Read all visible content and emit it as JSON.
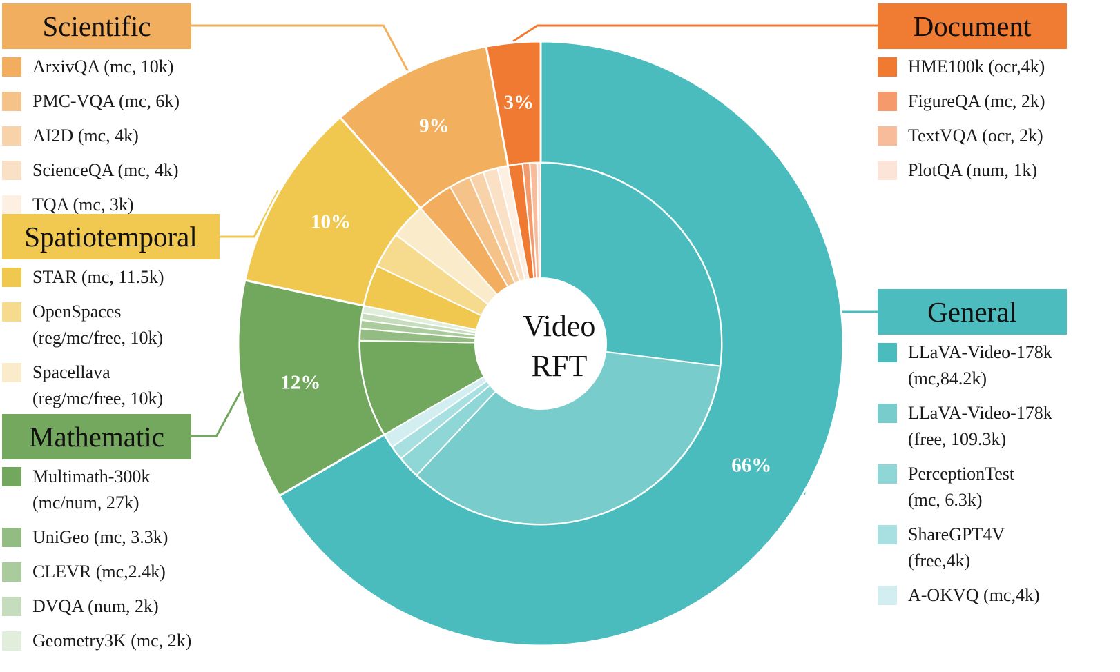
{
  "chart_data": {
    "type": "pie",
    "center_label": [
      "Video",
      "RFT"
    ],
    "categories": [
      {
        "name": "General",
        "percent_label": "66%",
        "color": "#4bbcbe",
        "items": [
          {
            "label": "LLaVA-Video-178k\n(mc,84.2k)",
            "value": 84.2,
            "color": "#4bbcbe"
          },
          {
            "label": "LLaVA-Video-178k\n(free, 109.3k)",
            "value": 109.3,
            "color": "#78cdcc"
          },
          {
            "label": "PerceptionTest\n(mc, 6.3k)",
            "value": 6.3,
            "color": "#8fd6d6"
          },
          {
            "label": "ShareGPT4V\n(free,4k)",
            "value": 4,
            "color": "#a8dfe1"
          },
          {
            "label": "A-OKVQ (mc,4k)",
            "value": 4,
            "color": "#d2eef0"
          }
        ]
      },
      {
        "name": "Mathematic",
        "percent_label": "12%",
        "color": "#72a85e",
        "items": [
          {
            "label": "Multimath-300k\n(mc/num, 27k)",
            "value": 27,
            "color": "#72a85e"
          },
          {
            "label": "UniGeo (mc, 3.3k)",
            "value": 3.3,
            "color": "#92bc81"
          },
          {
            "label": "CLEVR (mc,2.4k)",
            "value": 2.4,
            "color": "#aacb9c"
          },
          {
            "label": "DVQA (num, 2k)",
            "value": 2,
            "color": "#c5ddbc"
          },
          {
            "label": "Geometry3K (mc, 2k)",
            "value": 2,
            "color": "#e2eedc"
          }
        ]
      },
      {
        "name": "Spatiotemporal",
        "percent_label": "10%",
        "color": "#f0c850",
        "items": [
          {
            "label": "STAR (mc, 11.5k)",
            "value": 11.5,
            "color": "#f0c850"
          },
          {
            "label": "OpenSpaces\n(reg/mc/free, 10k)",
            "value": 10,
            "color": "#f6da8d"
          },
          {
            "label": "Spacellava\n(reg/mc/free, 10k)",
            "value": 10,
            "color": "#faeccb"
          }
        ]
      },
      {
        "name": "Scientific",
        "percent_label": "9%",
        "color": "#f2b05e",
        "items": [
          {
            "label": "ArxivQA (mc, 10k)",
            "value": 10,
            "color": "#f2ad5e"
          },
          {
            "label": "PMC-VQA (mc, 6k)",
            "value": 6,
            "color": "#f5c28a"
          },
          {
            "label": "AI2D (mc, 4k)",
            "value": 4,
            "color": "#f8d2a8"
          },
          {
            "label": "ScienceQA (mc, 4k)",
            "value": 4,
            "color": "#fae1c6"
          },
          {
            "label": "TQA (mc, 3k)",
            "value": 3,
            "color": "#fdf0e2"
          }
        ]
      },
      {
        "name": "Document",
        "percent_label": "3%",
        "color": "#f07a32",
        "items": [
          {
            "label": "HME100k (ocr,4k)",
            "value": 4,
            "color": "#f07a32"
          },
          {
            "label": "FigureQA (mc, 2k)",
            "value": 2,
            "color": "#f59a6a"
          },
          {
            "label": "TextVQA (ocr, 2k)",
            "value": 2,
            "color": "#f8bc9a"
          },
          {
            "label": "PlotQA (num, 1k)",
            "value": 1,
            "color": "#fde4d8"
          }
        ]
      }
    ]
  }
}
